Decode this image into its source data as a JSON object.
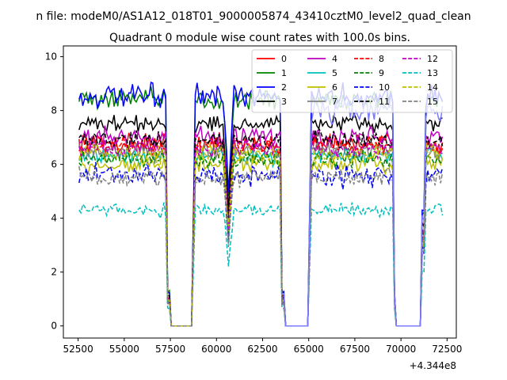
{
  "figure": {
    "suptitle": "n file: modeM0/AS1A12_018T01_9000005874_43410cztM0_level2_quad_clean"
  },
  "chart_data": {
    "type": "line",
    "title": "Quadrant 0 module wise count rates with 100.0s bins.",
    "xlabel": "",
    "ylabel": "",
    "x_offset_label": "+4.344e8",
    "xlim": [
      51700,
      73000
    ],
    "ylim": [
      -0.45,
      10.4
    ],
    "xticks": [
      52500,
      55000,
      57500,
      60000,
      62500,
      65000,
      67500,
      70000,
      72500
    ],
    "yticks": [
      0,
      2,
      4,
      6,
      8,
      10
    ],
    "grid": false,
    "legend": {
      "placement": "top-right",
      "columns": 4
    },
    "time_range": [
      52550,
      72250
    ],
    "bin_s": 100,
    "gaps": [
      [
        57450,
        58700
      ],
      [
        63650,
        65000
      ],
      [
        69700,
        71150
      ]
    ],
    "dips": [
      60650
    ],
    "series": [
      {
        "name": "0",
        "color": "#ff0000",
        "dash": "solid",
        "level": 6.8,
        "noise": 0.35
      },
      {
        "name": "1",
        "color": "#008000",
        "dash": "solid",
        "level": 8.4,
        "noise": 0.35
      },
      {
        "name": "2",
        "color": "#0000ff",
        "dash": "solid",
        "level": 8.5,
        "noise": 0.4
      },
      {
        "name": "3",
        "color": "#000000",
        "dash": "solid",
        "level": 7.5,
        "noise": 0.3
      },
      {
        "name": "4",
        "color": "#bf00bf",
        "dash": "solid",
        "level": 7.0,
        "noise": 0.35
      },
      {
        "name": "5",
        "color": "#00bfbf",
        "dash": "solid",
        "level": 6.3,
        "noise": 0.3
      },
      {
        "name": "6",
        "color": "#bfbf00",
        "dash": "solid",
        "level": 6.0,
        "noise": 0.3
      },
      {
        "name": "7",
        "color": "#808080",
        "dash": "solid",
        "level": 6.5,
        "noise": 0.3
      },
      {
        "name": "8",
        "color": "#ff0000",
        "dash": "dashed",
        "level": 6.7,
        "noise": 0.3
      },
      {
        "name": "9",
        "color": "#008000",
        "dash": "dashed",
        "level": 6.2,
        "noise": 0.3
      },
      {
        "name": "10",
        "color": "#0000ff",
        "dash": "dashed",
        "level": 5.6,
        "noise": 0.35
      },
      {
        "name": "11",
        "color": "#000000",
        "dash": "dashed",
        "level": 6.9,
        "noise": 0.3
      },
      {
        "name": "12",
        "color": "#bf00bf",
        "dash": "dashed",
        "level": 6.6,
        "noise": 0.3
      },
      {
        "name": "13",
        "color": "#00bfbf",
        "dash": "dashed",
        "level": 4.3,
        "noise": 0.25
      },
      {
        "name": "14",
        "color": "#bfbf00",
        "dash": "dashed",
        "level": 6.4,
        "noise": 0.3
      },
      {
        "name": "15",
        "color": "#808080",
        "dash": "dashed",
        "level": 5.5,
        "noise": 0.3
      },
      {
        "name": "",
        "color": "#7b7bff",
        "dash": "solid",
        "level": 8.0,
        "noise": 0.4,
        "window": [
          63550,
          72250
        ]
      }
    ]
  }
}
